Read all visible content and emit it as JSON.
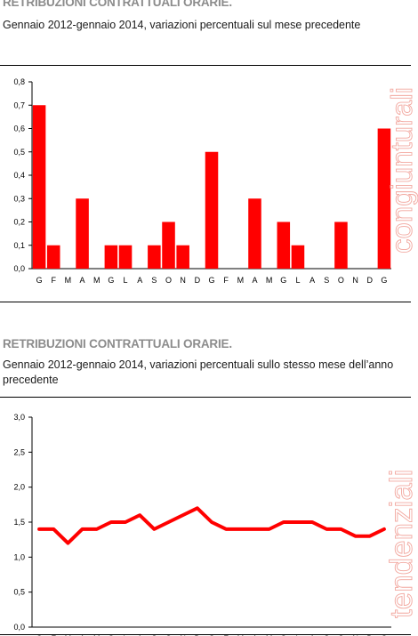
{
  "accent_color": "#ff0000",
  "label_color": "#f2a8a0",
  "charts": {
    "c1": {
      "title": "RETRIBUZIONI CONTRATTUALI ORARIE.",
      "subtitle": "Gennaio 2012-gennaio 2014, variazioni percentuali sul mese precedente",
      "side_label": "congiunturali"
    },
    "c2": {
      "title": "RETRIBUZIONI CONTRATTUALI ORARIE.",
      "subtitle": "Gennaio 2012-gennaio 2014, variazioni percentuali sullo stesso mese dell’anno precedente",
      "side_label": "tendenziali"
    }
  },
  "chart_data": [
    {
      "type": "bar",
      "title": "RETRIBUZIONI CONTRATTUALI ORARIE.",
      "subtitle": "Gennaio 2012-gennaio 2014, variazioni percentuali sul mese precedente",
      "categories": [
        "G",
        "F",
        "M",
        "A",
        "M",
        "G",
        "L",
        "A",
        "S",
        "O",
        "N",
        "D",
        "G",
        "F",
        "M",
        "A",
        "M",
        "G",
        "L",
        "A",
        "S",
        "O",
        "N",
        "D",
        "G"
      ],
      "values": [
        0.7,
        0.1,
        0,
        0.3,
        0,
        0.1,
        0.1,
        0,
        0.1,
        0.2,
        0.1,
        0,
        0.5,
        0,
        0,
        0.3,
        0,
        0.2,
        0.1,
        0,
        0,
        0.2,
        0,
        0,
        0.6
      ],
      "yticks": [
        "0,0",
        "0,1",
        "0,2",
        "0,3",
        "0,4",
        "0,5",
        "0,6",
        "0,7",
        "0,8"
      ],
      "ylim": [
        0,
        0.8
      ],
      "grid": false,
      "side_label": "congiunturali"
    },
    {
      "type": "line",
      "title": "RETRIBUZIONI CONTRATTUALI ORARIE.",
      "subtitle": "Gennaio 2012-gennaio 2014, variazioni percentuali sullo stesso mese dell’anno precedente",
      "categories": [
        "G",
        "F",
        "M",
        "A",
        "M",
        "G",
        "L",
        "A",
        "S",
        "O",
        "N",
        "D",
        "G",
        "F",
        "M",
        "A",
        "M",
        "G",
        "L",
        "A",
        "S",
        "O",
        "N",
        "D",
        "G"
      ],
      "values": [
        1.4,
        1.4,
        1.2,
        1.4,
        1.4,
        1.5,
        1.5,
        1.6,
        1.4,
        1.5,
        1.6,
        1.7,
        1.5,
        1.4,
        1.4,
        1.4,
        1.4,
        1.5,
        1.5,
        1.5,
        1.4,
        1.4,
        1.3,
        1.3,
        1.4
      ],
      "yticks": [
        "0,0",
        "0,5",
        "1,0",
        "1,5",
        "2,0",
        "2,5",
        "3,0"
      ],
      "ylim": [
        0,
        3.0
      ],
      "grid": false,
      "side_label": "tendenziali"
    }
  ]
}
